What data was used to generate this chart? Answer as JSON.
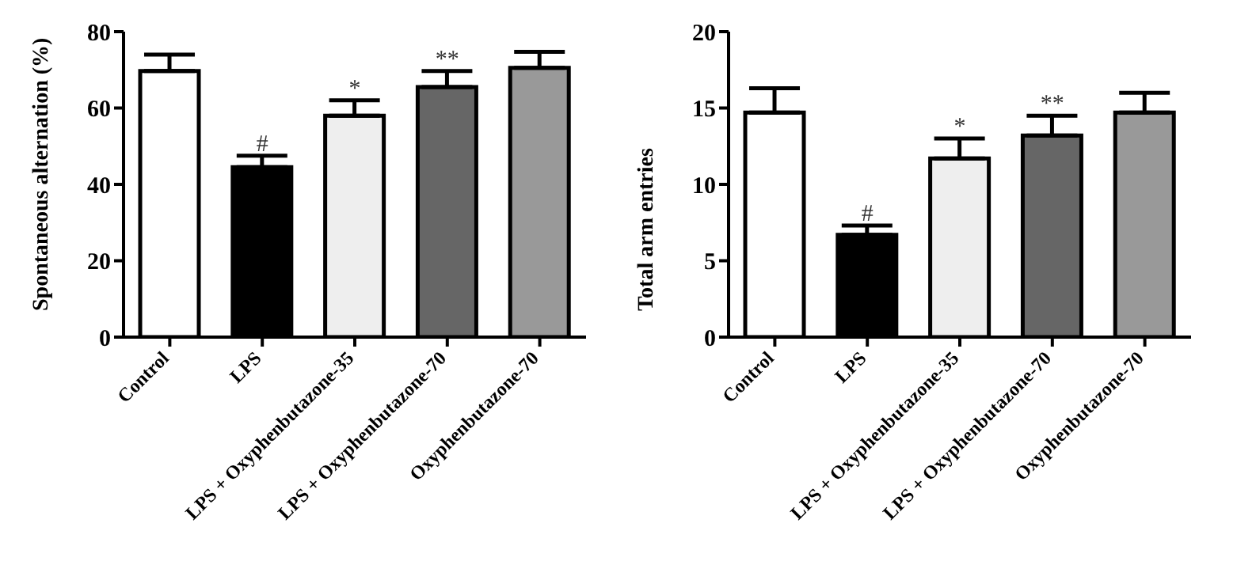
{
  "chart_data": [
    {
      "type": "bar",
      "ylabel": "Spontaneous alternation (%)",
      "categories": [
        "Control",
        "LPS",
        "LPS + Oxyphenbutazone-35",
        "LPS + Oxyphenbutazone-70",
        "Oxyphenbutazone-70"
      ],
      "values": [
        69.7,
        44.5,
        58,
        65.5,
        70.5
      ],
      "colors": [
        "#ffffff",
        "#000000",
        "#eeeeee",
        "#666666",
        "#999999"
      ],
      "errors": [
        [
          69.7,
          74
        ],
        [
          44.5,
          47.5
        ],
        [
          58,
          62
        ],
        [
          65.5,
          69.7
        ],
        [
          70.5,
          74.7
        ]
      ],
      "ylim": [
        0,
        80
      ],
      "yticks": [
        0,
        20,
        40,
        60,
        80
      ],
      "grid": false,
      "legend": false,
      "annotations": [
        {
          "text": "#",
          "x": "LPS",
          "y": 47.5
        },
        {
          "text": "*",
          "x": "LPS + Oxyphenbutazone-35",
          "y": 62
        },
        {
          "text": "**",
          "x": "LPS + Oxyphenbutazone-70",
          "y": 69.7
        }
      ]
    },
    {
      "type": "bar",
      "ylabel": "Total arm entries",
      "categories": [
        "Control",
        "LPS",
        "LPS + Oxyphenbutazone-35",
        "LPS + Oxyphenbutazone-70",
        "Oxyphenbutazone-70"
      ],
      "values": [
        14.7,
        6.7,
        11.7,
        13.2,
        14.7
      ],
      "colors": [
        "#ffffff",
        "#000000",
        "#eeeeee",
        "#666666",
        "#999999"
      ],
      "errors": [
        [
          14.7,
          16.3
        ],
        [
          6.7,
          7.3
        ],
        [
          11.7,
          13
        ],
        [
          13.2,
          14.5
        ],
        [
          14.7,
          16
        ]
      ],
      "ylim": [
        0,
        20
      ],
      "yticks": [
        0,
        5,
        10,
        15,
        20
      ],
      "grid": false,
      "legend": false,
      "annotations": [
        {
          "text": "#",
          "x": "LPS",
          "y": 7.3
        },
        {
          "text": "*",
          "x": "LPS + Oxyphenbutazone-35",
          "y": 13
        },
        {
          "text": "**",
          "x": "LPS + Oxyphenbutazone-70",
          "y": 14.5
        }
      ]
    }
  ]
}
